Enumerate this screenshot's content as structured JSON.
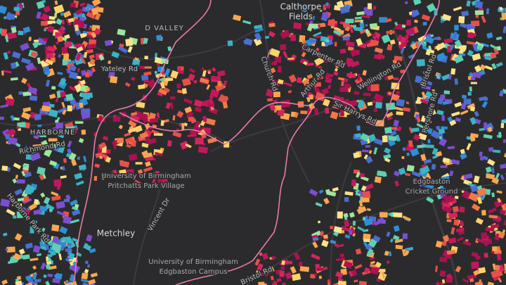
{
  "map": {
    "labels": [
      "Calthorpe",
      "Fields",
      "D VALLEY",
      "HARBORNE",
      "Yateley Rd",
      "Church Rd",
      "Carpenter Rd",
      "Arthur Rd",
      "Wellington Rd",
      "Sir Harrys Rd",
      "Bristol Rd",
      "Pershore Rd",
      "University of Birmingham",
      "Pritchatts Park Village",
      "Vincent Dr",
      "Metchley",
      "University of Birmingham",
      "Edgbaston Campus",
      "Edgbaston",
      "Cricket Ground",
      "Bristol Rd",
      "Harborne Park Rd",
      "Richmond Rd"
    ]
  }
}
